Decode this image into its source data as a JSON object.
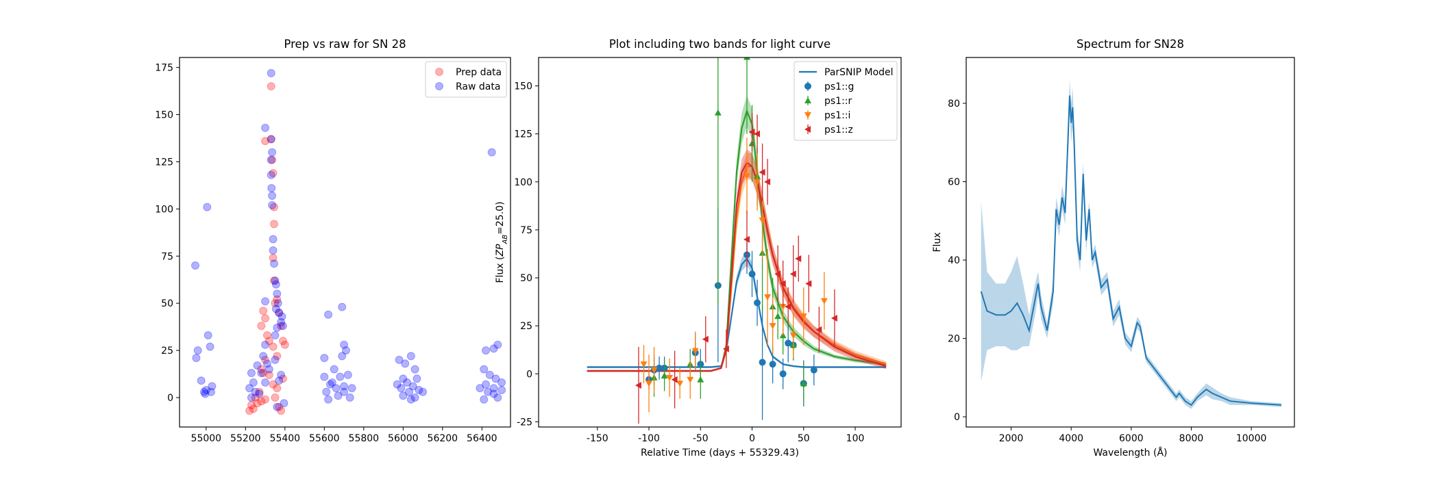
{
  "chart_data": [
    {
      "type": "scatter",
      "title": "Prep vs raw for SN 28",
      "xlim": [
        54865,
        56545
      ],
      "ylim": [
        -15.6,
        180.3
      ],
      "xticks": [
        55000,
        55200,
        55400,
        55600,
        55800,
        56000,
        56200,
        56400
      ],
      "yticks": [
        0,
        25,
        50,
        75,
        100,
        125,
        150,
        175
      ],
      "legend": "upper right",
      "alpha": 0.3,
      "series": [
        {
          "name": "Prep data",
          "color": "#ff0000",
          "x": [
            55330,
            55300,
            55330,
            55335,
            55340,
            55345,
            55345,
            55340,
            55345,
            55360,
            55350,
            55370,
            55380,
            55390,
            55400,
            55290,
            55280,
            55300,
            55310,
            55320,
            55300,
            55280,
            55290,
            55320,
            55340,
            55360,
            55350,
            55230,
            55220,
            55240,
            55260,
            55280,
            55300,
            55370,
            55380,
            55250,
            55270,
            55390,
            55360,
            55340
          ],
          "values": [
            165,
            136,
            137,
            126,
            119,
            101,
            92,
            74,
            62,
            52,
            50,
            45,
            38,
            30,
            28,
            46,
            38,
            42,
            33,
            30,
            20,
            15,
            13,
            12,
            7,
            5,
            0,
            -4,
            -7,
            -6,
            -3,
            -2,
            -1,
            -5,
            -7,
            0,
            3,
            10,
            22,
            27
          ]
        },
        {
          "name": "Raw data",
          "color": "#0000ff",
          "x": [
            54945,
            54950,
            54958,
            54975,
            54990,
            55000,
            55005,
            55010,
            55020,
            55030,
            55025,
            54995,
            55330,
            55300,
            55330,
            55335,
            55330,
            55330,
            55332,
            55335,
            55335,
            55340,
            55340,
            55345,
            55350,
            55355,
            55360,
            55365,
            55370,
            55380,
            55390,
            55360,
            55350,
            55300,
            55290,
            55310,
            55320,
            55260,
            55230,
            55240,
            55220,
            55250,
            55270,
            55300,
            55280,
            55380,
            55395,
            55360,
            55230,
            55350,
            55370,
            55355,
            55385,
            55300,
            55620,
            55690,
            55700,
            55710,
            55690,
            55600,
            55650,
            55600,
            55680,
            55720,
            55640,
            55700,
            55660,
            55610,
            55730,
            55620,
            55670,
            55700,
            55740,
            55630,
            55980,
            56010,
            56040,
            56060,
            56000,
            56020,
            56050,
            55970,
            56080,
            56030,
            56000,
            56060,
            56100,
            55990,
            56040,
            56070,
            56450,
            56480,
            56460,
            56420,
            56410,
            56440,
            56470,
            56500,
            56390,
            56430,
            56460,
            56480,
            56410,
            56500,
            56420,
            56460
          ],
          "values": [
            70,
            21,
            25,
            9,
            3,
            4,
            101,
            33,
            27,
            6,
            3,
            2,
            172,
            143,
            137,
            130,
            126,
            118,
            111,
            107,
            102,
            84,
            78,
            71,
            62,
            60,
            55,
            50,
            45,
            40,
            38,
            37,
            33,
            28,
            22,
            18,
            15,
            17,
            13,
            8,
            5,
            3,
            2,
            8,
            13,
            12,
            -3,
            -5,
            0,
            20,
            9,
            47,
            43,
            51,
            44,
            48,
            28,
            25,
            22,
            21,
            15,
            11,
            11,
            12,
            8,
            6,
            5,
            3,
            0,
            -1,
            1,
            3,
            5,
            7,
            20,
            18,
            22,
            15,
            10,
            8,
            6,
            7,
            4,
            3,
            1,
            0,
            3,
            5,
            -1,
            10,
            130,
            28,
            26,
            25,
            15,
            12,
            10,
            8,
            5,
            3,
            2,
            0,
            -1,
            4,
            7,
            5
          ]
        }
      ]
    },
    {
      "type": "errorbar",
      "title": "Plot including two bands for light curve",
      "xlabel": "Relative Time (days + 55329.43)",
      "ylabel": [
        "Flux (",
        "ZP",
        "AB",
        "=25.0)"
      ],
      "xlim": [
        -207,
        144.5
      ],
      "ylim": [
        -27.7,
        164.8
      ],
      "xticks": [
        -150,
        -100,
        -50,
        0,
        50,
        100
      ],
      "yticks": [
        -25,
        0,
        25,
        50,
        75,
        100,
        125,
        150
      ],
      "legend": "upper right",
      "model_label": "ParSNIP Model",
      "model_x": [
        -160,
        -100,
        -40,
        -30,
        -25,
        -20,
        -15,
        -10,
        -5,
        0,
        5,
        10,
        15,
        20,
        30,
        40,
        50,
        60,
        80,
        100,
        130
      ],
      "models": [
        {
          "color": "#1f77b4",
          "values": [
            3.5,
            3.5,
            3.5,
            4,
            12,
            30,
            48,
            57,
            60,
            55,
            40,
            25,
            15,
            9,
            5,
            4,
            3.5,
            3.5,
            3.5,
            3.5,
            3.5
          ],
          "errors": [
            0.5,
            0.5,
            0.5,
            0.5,
            1,
            2,
            3,
            3.5,
            3.5,
            3,
            2.5,
            1.5,
            1,
            0.8,
            0.5,
            0.5,
            0.5,
            0.5,
            0.5,
            0.5,
            0.5
          ]
        },
        {
          "color": "#2ca02c",
          "values": [
            1.5,
            1.5,
            1.5,
            3,
            15,
            60,
            105,
            128,
            137,
            130,
            105,
            80,
            60,
            45,
            30,
            22,
            17,
            13,
            9,
            7,
            5
          ],
          "errors": [
            0.5,
            0.5,
            0.5,
            0.5,
            1.5,
            4,
            7,
            8,
            8,
            8,
            7,
            6,
            5,
            4,
            3,
            2.5,
            2,
            1.5,
            1,
            1,
            1
          ]
        },
        {
          "color": "#ff7f0e",
          "values": [
            1.5,
            1.5,
            1.5,
            3,
            12,
            45,
            80,
            100,
            108,
            108,
            100,
            88,
            75,
            62,
            45,
            35,
            28,
            22,
            15,
            10,
            5
          ],
          "errors": [
            0.5,
            0.5,
            0.5,
            0.5,
            1.5,
            4,
            6,
            7,
            7,
            7,
            7,
            6,
            6,
            5,
            4,
            4,
            3.5,
            3,
            2.5,
            2,
            1.5
          ]
        },
        {
          "color": "#d62728",
          "values": [
            1.5,
            1.5,
            1.5,
            3,
            13,
            50,
            88,
            105,
            110,
            108,
            100,
            88,
            74,
            62,
            45,
            34,
            27,
            22,
            14,
            9,
            4
          ],
          "errors": [
            0.5,
            0.5,
            0.5,
            0.5,
            1.5,
            4,
            6,
            7,
            7,
            7,
            7,
            6,
            6,
            5,
            4,
            4,
            3.5,
            3,
            2.5,
            2,
            1.5
          ]
        }
      ],
      "series": [
        {
          "name": "ps1::g",
          "color": "#1f77b4",
          "marker": "o",
          "x": [
            -100,
            -95,
            -90,
            -85,
            -55,
            -50,
            -33,
            -5,
            0,
            5,
            10,
            20,
            30,
            35,
            40,
            50,
            60
          ],
          "values": [
            -3,
            2,
            3,
            3,
            11,
            5,
            46,
            62,
            52,
            37,
            6,
            5,
            0,
            16,
            15,
            -5,
            2
          ],
          "errors": [
            5,
            8,
            6,
            6,
            10,
            8,
            40,
            10,
            12,
            12,
            30,
            10,
            8,
            10,
            8,
            12,
            8
          ]
        },
        {
          "name": "ps1::r",
          "color": "#2ca02c",
          "marker": "^",
          "x": [
            -95,
            -85,
            -60,
            -50,
            -33,
            -5,
            0,
            5,
            10,
            20,
            25,
            30,
            40,
            50
          ],
          "values": [
            -2,
            -1,
            5,
            -3,
            136,
            165,
            120,
            103,
            63,
            35,
            30,
            20,
            15,
            -5
          ],
          "errors": [
            10,
            8,
            8,
            10,
            100,
            40,
            20,
            15,
            30,
            15,
            12,
            10,
            8,
            10
          ]
        },
        {
          "name": "ps1::i",
          "color": "#ff7f0e",
          "marker": "v",
          "x": [
            -105,
            -100,
            -95,
            -80,
            -70,
            -60,
            -55,
            -5,
            5,
            10,
            15,
            20,
            30,
            40,
            50,
            70
          ],
          "values": [
            5,
            -5,
            2,
            -2,
            -5,
            -3,
            12,
            103,
            100,
            80,
            40,
            25,
            35,
            20,
            30,
            38
          ],
          "errors": [
            10,
            15,
            12,
            10,
            8,
            10,
            10,
            20,
            15,
            20,
            25,
            15,
            15,
            12,
            15,
            15
          ]
        },
        {
          "name": "ps1::z",
          "color": "#d62728",
          "marker": "<",
          "x": [
            -110,
            -75,
            -45,
            -25,
            -5,
            0,
            5,
            10,
            15,
            25,
            30,
            35,
            40,
            45,
            55,
            65,
            80
          ],
          "values": [
            -6,
            -3,
            18,
            13,
            70,
            126,
            125,
            105,
            100,
            52,
            47,
            35,
            52,
            60,
            47,
            23,
            29
          ],
          "errors": [
            20,
            15,
            12,
            10,
            15,
            10,
            10,
            15,
            12,
            15,
            12,
            10,
            15,
            12,
            15,
            12,
            15
          ]
        }
      ]
    },
    {
      "type": "line",
      "title": "Spectrum for SN28",
      "xlabel": "Wavelength (Å)",
      "ylabel": "Flux",
      "xlim": [
        504,
        11435
      ],
      "ylim": [
        -2.6,
        91.7
      ],
      "xticks": [
        2000,
        4000,
        6000,
        8000,
        10000
      ],
      "yticks": [
        0,
        20,
        40,
        60,
        80
      ],
      "color": "#1f77b4",
      "x": [
        1000,
        1200,
        1500,
        1800,
        2000,
        2200,
        2400,
        2600,
        2800,
        2900,
        3000,
        3200,
        3400,
        3500,
        3600,
        3700,
        3800,
        3950,
        4000,
        4050,
        4100,
        4200,
        4300,
        4400,
        4500,
        4600,
        4700,
        4800,
        5000,
        5200,
        5400,
        5600,
        5800,
        6000,
        6200,
        6300,
        6500,
        6800,
        7000,
        7300,
        7500,
        7600,
        7800,
        8000,
        8200,
        8500,
        8700,
        9000,
        9300,
        10000,
        11000
      ],
      "values": [
        32,
        27,
        26,
        26,
        27,
        29,
        26,
        22,
        30,
        34,
        28,
        22,
        32,
        53,
        49,
        56,
        52,
        82,
        75,
        79,
        70,
        45,
        40,
        62,
        45,
        53,
        40,
        42,
        33,
        35,
        25,
        28,
        20,
        18,
        24,
        23,
        15,
        12,
        10,
        7,
        5,
        6,
        4,
        3,
        5,
        7,
        6,
        5,
        4,
        3.5,
        3
      ],
      "errors": [
        23,
        10,
        8,
        8,
        10,
        12,
        8,
        4,
        4,
        3,
        3,
        2,
        3,
        3,
        3,
        3,
        3,
        4,
        5,
        5,
        4,
        3,
        3,
        3,
        3,
        2,
        2,
        2,
        2,
        2,
        2,
        2,
        1.5,
        1.5,
        1.5,
        1.5,
        1,
        1,
        1,
        1,
        1,
        1,
        1,
        1,
        1,
        1.5,
        1.5,
        1,
        1,
        0.5,
        0.5
      ]
    }
  ]
}
